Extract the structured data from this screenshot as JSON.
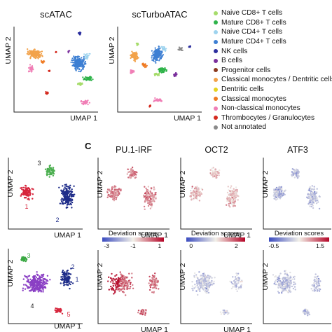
{
  "figure": {
    "panel_labels": [
      "C"
    ],
    "top_panels": [
      {
        "title": "scATAC",
        "xlabel": "UMAP 1",
        "ylabel": "UMAP 2"
      },
      {
        "title": "scTurboATAC",
        "xlabel": "UMAP 1",
        "ylabel": "UMAP 2"
      }
    ],
    "legend": [
      {
        "label": "Naive CD8+ T cells",
        "color": "#a6dc6b"
      },
      {
        "label": "Mature CD8+ T cells",
        "color": "#2fb34a"
      },
      {
        "label": "Naive CD4+ T cells",
        "color": "#9ed3ee"
      },
      {
        "label": "Mature CD4+ T cells",
        "color": "#3d7fd3"
      },
      {
        "label": "NK cells",
        "color": "#2c2f9e"
      },
      {
        "label": "B cells",
        "color": "#7a2f9c"
      },
      {
        "label": "Progenitor cells",
        "color": "#8b3a1f"
      },
      {
        "label": "Classical monocytes / Dentritic cells",
        "color": "#f2a24a"
      },
      {
        "label": "Dentritic cells",
        "color": "#e6d21f"
      },
      {
        "label": "Classical monocytes",
        "color": "#ef7a22"
      },
      {
        "label": "Non-classical monocytes",
        "color": "#f07fb6"
      },
      {
        "label": "Thrombocytes / Granulocytes",
        "color": "#d42a1f"
      },
      {
        "label": "Not annotated",
        "color": "#8a8a8a"
      }
    ],
    "cluster_panels": [
      {
        "xlabel": "UMAP 1",
        "ylabel": "UMAP 2",
        "clusters": [
          {
            "id": "1",
            "color": "#d7263d"
          },
          {
            "id": "2",
            "color": "#1f2d8a"
          },
          {
            "id": "3",
            "color": "#4caf50"
          }
        ]
      },
      {
        "xlabel": "UMAP 1",
        "ylabel": "UMAP 2",
        "clusters": [
          {
            "id": "1",
            "color": "#1f2d8a"
          },
          {
            "id": "2",
            "color": "#1f2d8a"
          },
          {
            "id": "3",
            "color": "#3aa843"
          },
          {
            "id": "4",
            "color": "#8a3fc4"
          },
          {
            "id": "5",
            "color": "#d7263d"
          }
        ]
      }
    ],
    "motif_panels": [
      {
        "title": "PU.1-IRF",
        "xlabel": "UMAP 1",
        "ylabel": "UMAP 2"
      },
      {
        "title": "OCT2",
        "xlabel": "UMAP 1",
        "ylabel": "UMAP 2"
      },
      {
        "title": "ATF3",
        "xlabel": "UMAP 1",
        "ylabel": "UMAP 2"
      },
      {
        "title": "",
        "xlabel": "UMAP 1",
        "ylabel": "UMAP 2"
      },
      {
        "title": "",
        "xlabel": "UMAP 1",
        "ylabel": "UMAP 2"
      },
      {
        "title": "",
        "xlabel": "UMAP 1",
        "ylabel": "UMAP 2"
      }
    ],
    "colorbars": [
      {
        "label": "Deviation scores",
        "ticks": [
          "-3",
          "-1",
          "1"
        ]
      },
      {
        "label": "Deviation scores",
        "ticks": [
          "0",
          "2"
        ]
      },
      {
        "label": "Deviation scores",
        "ticks": [
          "-0.5",
          "1.5"
        ]
      }
    ],
    "colors": {
      "low": "#3b4cc0",
      "mid": "#f2f0e8",
      "high": "#b40426"
    }
  }
}
